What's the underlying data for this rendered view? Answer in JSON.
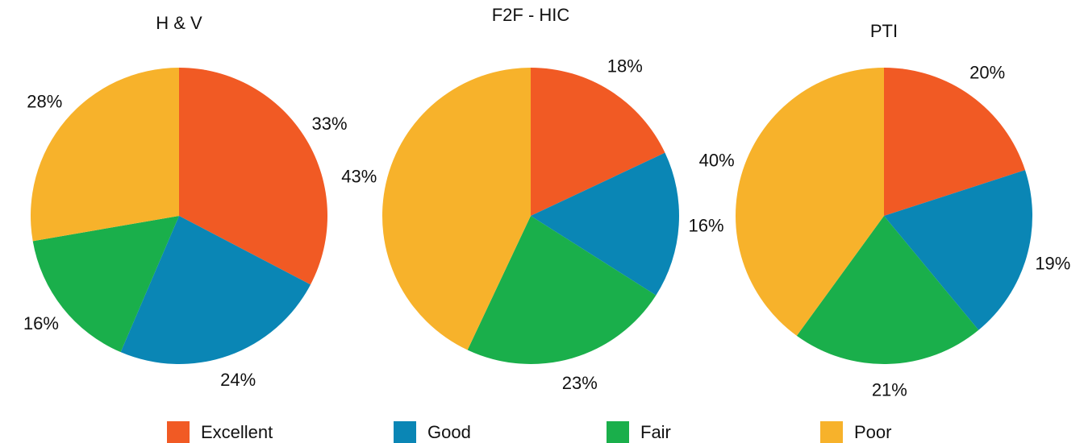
{
  "chart_data": [
    {
      "type": "pie",
      "title": "H & V",
      "categories": [
        "Excellent",
        "Good",
        "Fair",
        "Poor"
      ],
      "values": [
        33,
        24,
        16,
        28
      ],
      "colors": [
        "#f15a24",
        "#0a86b5",
        "#1aaf4b",
        "#f7b22b"
      ]
    },
    {
      "type": "pie",
      "title": "F2F - HIC",
      "categories": [
        "Excellent",
        "Good",
        "Fair",
        "Poor"
      ],
      "values": [
        18,
        16,
        23,
        43
      ],
      "colors": [
        "#f15a24",
        "#0a86b5",
        "#1aaf4b",
        "#f7b22b"
      ]
    },
    {
      "type": "pie",
      "title": "PTI",
      "categories": [
        "Excellent",
        "Good",
        "Fair",
        "Poor"
      ],
      "values": [
        20,
        19,
        21,
        40
      ],
      "colors": [
        "#f15a24",
        "#0a86b5",
        "#1aaf4b",
        "#f7b22b"
      ]
    }
  ]
}
